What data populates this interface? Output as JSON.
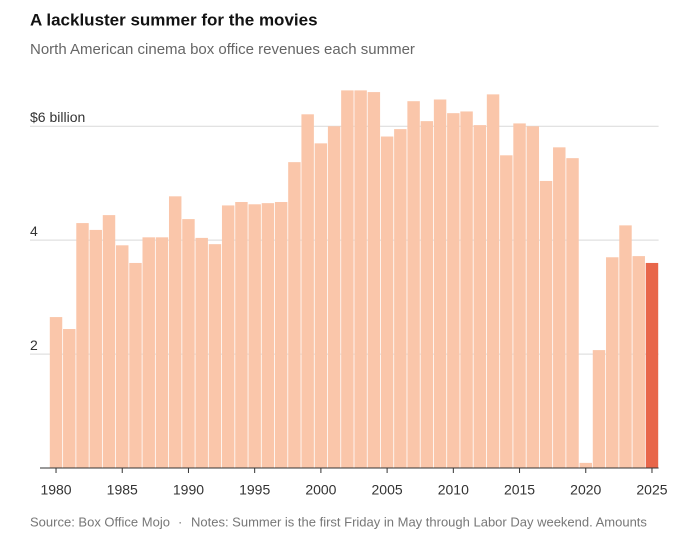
{
  "chart_data": {
    "type": "bar",
    "title": "A lackluster summer for the movies",
    "subtitle": "North American cinema box office revenues each summer",
    "source": "Source: Box Office Mojo",
    "note": "Notes: Summer is the first Friday in May through Labor Day weekend. Amounts",
    "x": [
      1980,
      1981,
      1982,
      1983,
      1984,
      1985,
      1986,
      1987,
      1988,
      1989,
      1990,
      1991,
      1992,
      1993,
      1994,
      1995,
      1996,
      1997,
      1998,
      1999,
      2000,
      2001,
      2002,
      2003,
      2004,
      2005,
      2006,
      2007,
      2008,
      2009,
      2010,
      2011,
      2012,
      2013,
      2014,
      2015,
      2016,
      2017,
      2018,
      2019,
      2020,
      2021,
      2022,
      2023,
      2024,
      2025
    ],
    "values": [
      2.65,
      2.44,
      4.3,
      4.18,
      4.44,
      3.91,
      3.6,
      4.05,
      4.05,
      4.77,
      4.37,
      4.04,
      3.93,
      4.61,
      4.67,
      4.63,
      4.65,
      4.67,
      5.37,
      6.21,
      5.7,
      6.0,
      6.63,
      6.63,
      6.6,
      5.82,
      5.95,
      6.44,
      6.09,
      6.47,
      6.23,
      6.26,
      6.02,
      6.56,
      5.49,
      6.05,
      6.0,
      5.04,
      5.63,
      5.44,
      0.09,
      2.07,
      3.7,
      4.26,
      3.72,
      3.6
    ],
    "color": "#fac6aa",
    "last_color": "#e8664a",
    "xlim": [
      1979.5,
      2025.5
    ],
    "xticks": [
      1980,
      1985,
      1990,
      1995,
      2000,
      2005,
      2010,
      2015,
      2020,
      2025
    ],
    "ylim": [
      0,
      6.9
    ],
    "yticks": [
      2,
      4,
      {
        "value": 6,
        "label": "$6 billion"
      }
    ],
    "grid": true
  }
}
